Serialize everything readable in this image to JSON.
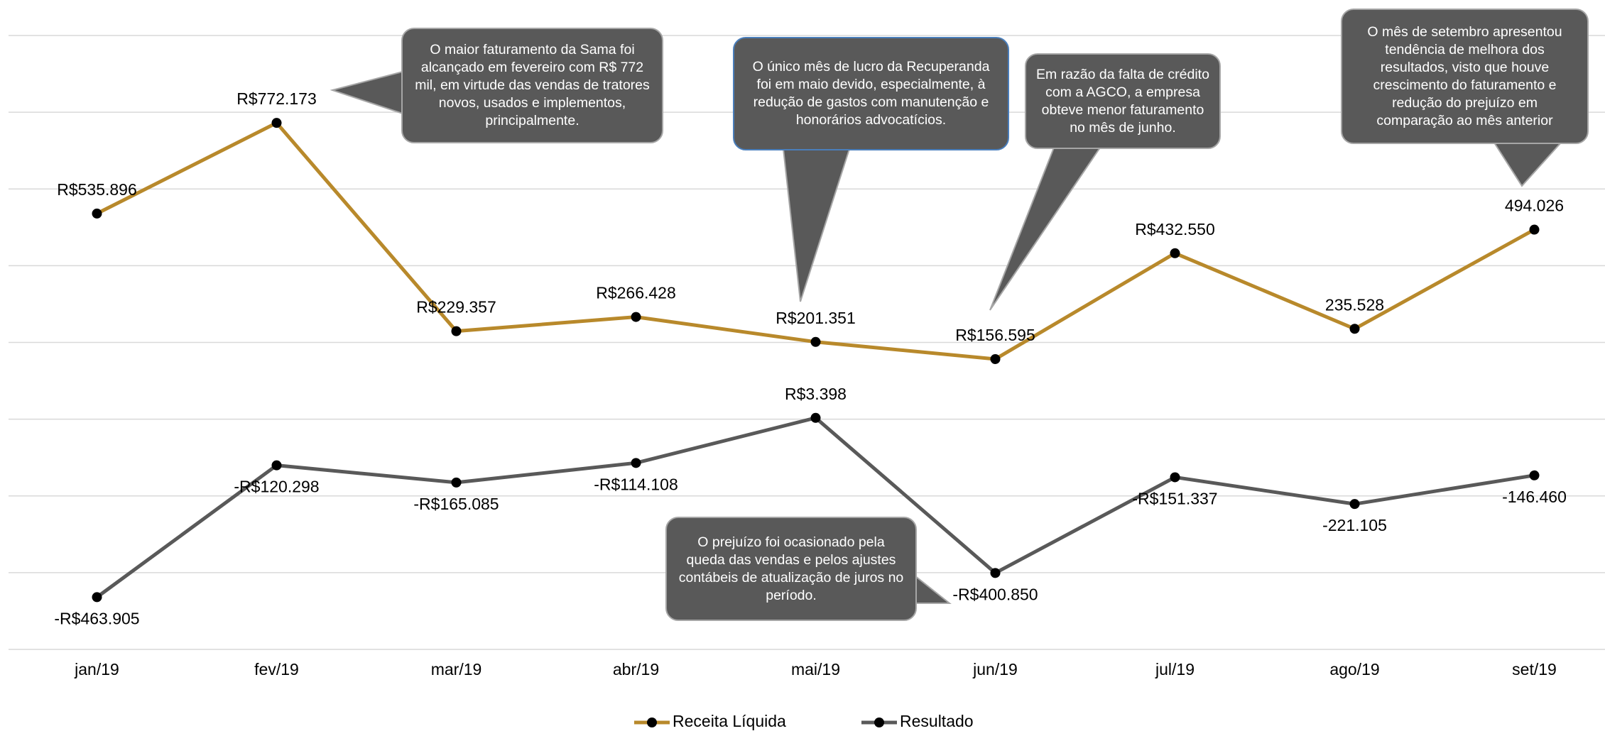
{
  "chart_data": {
    "type": "line",
    "categories": [
      "jan/19",
      "fev/19",
      "mar/19",
      "abr/19",
      "mai/19",
      "jun/19",
      "jul/19",
      "ago/19",
      "set/19"
    ],
    "series": [
      {
        "name": "Receita Líquida",
        "color": "#b8892b",
        "values": [
          535896,
          772173,
          229357,
          266428,
          201351,
          156595,
          432550,
          235528,
          494026
        ],
        "value_labels": [
          "R$535.896",
          "R$772.173",
          "R$229.357",
          "R$266.428",
          "R$201.351",
          "R$156.595",
          "R$432.550",
          "235.528",
          "494.026"
        ]
      },
      {
        "name": "Resultado",
        "color": "#595959",
        "values": [
          -463905,
          -120298,
          -165085,
          -114108,
          3398,
          -400850,
          -151337,
          -221105,
          -146460
        ],
        "value_labels": [
          "-R$463.905",
          "-R$120.298",
          "-R$165.085",
          "-R$114.108",
          "R$3.398",
          "-R$400.850",
          "-R$151.337",
          "-221.105",
          "-146.460"
        ]
      }
    ],
    "ylim": [
      -600000,
      1000000
    ],
    "yticks": [
      -600000,
      -400000,
      -200000,
      0,
      200000,
      400000,
      600000,
      800000,
      1000000
    ],
    "grid": true,
    "legend": "bottom",
    "annotations": [
      "O maior faturamento da Sama foi alcançado em fevereiro com R$ 772 mil, em virtude das vendas de tratores novos, usados e implementos, principalmente.",
      "O único mês de lucro da Recuperanda foi em maio devido, especialmente, à redução de gastos com manutenção e honorários advocatícios.",
      "Em razão da falta de crédito com a AGCO, a empresa obteve menor faturamento no mês de junho.",
      "O mês de setembro apresentou tendência de melhora dos resultados, visto que houve crescimento do faturamento e redução do prejuízo em comparação ao mês anterior",
      "O prejuízo foi ocasionado pela queda das vendas e pelos ajustes contábeis de atualização de juros no período."
    ]
  }
}
